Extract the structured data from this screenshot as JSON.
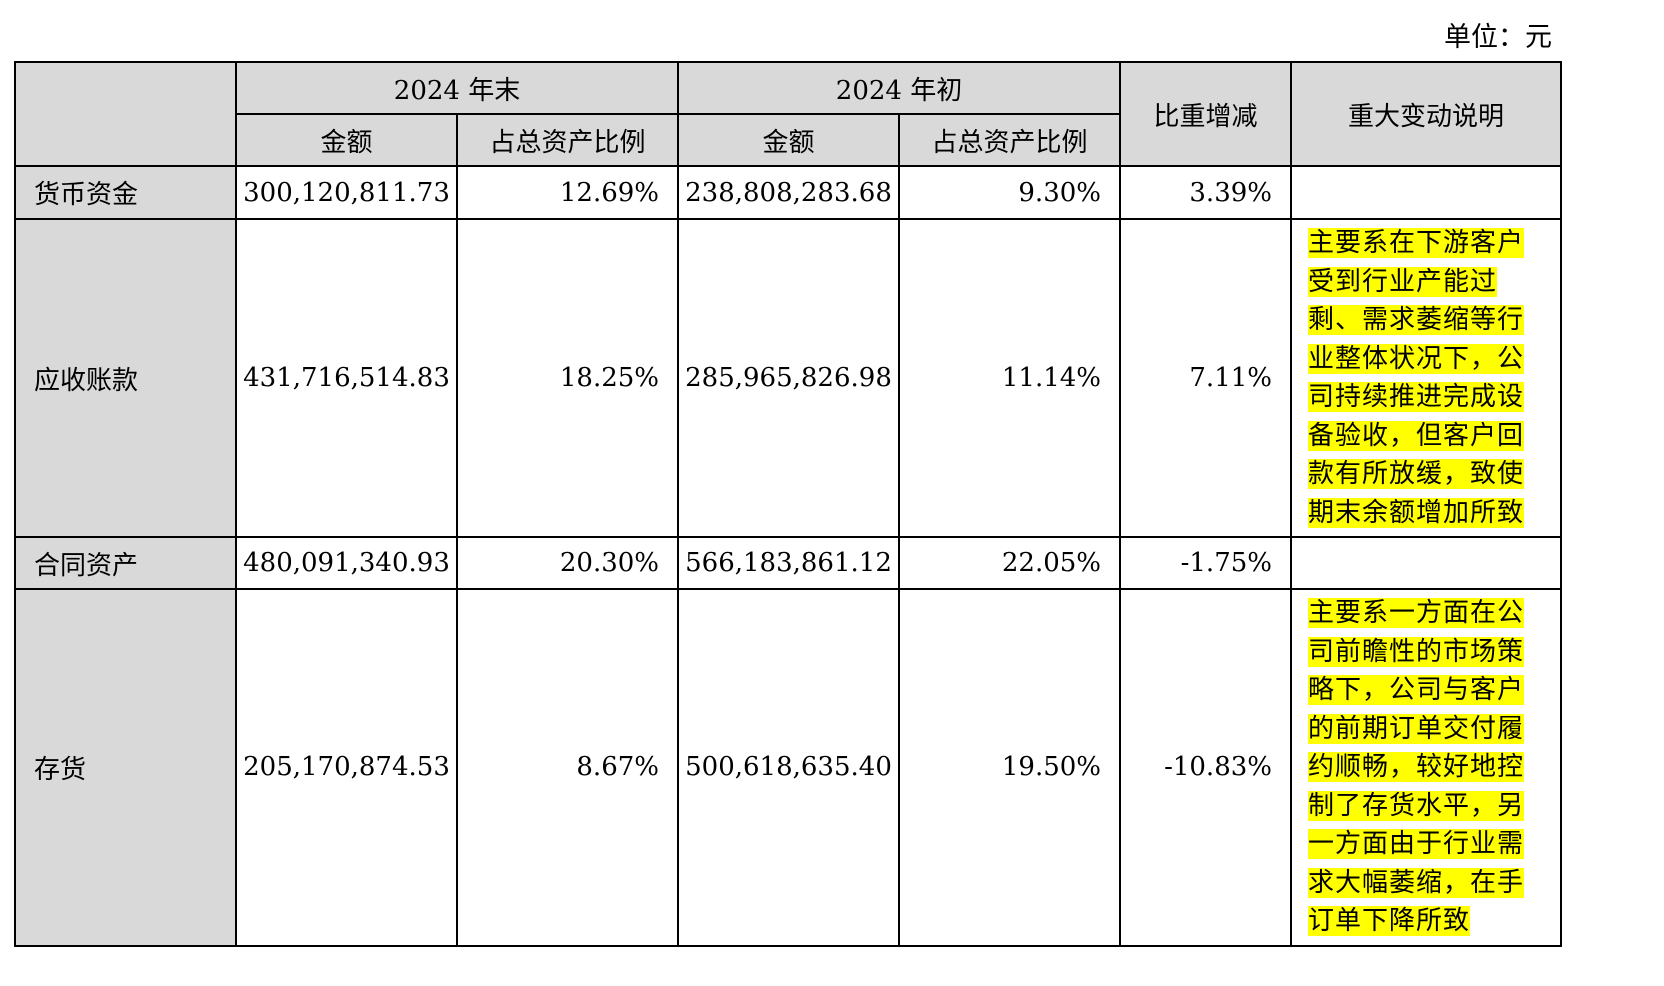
{
  "unit_label": "单位：元",
  "header": {
    "year_end": "2024 年末",
    "year_start": "2024 年初",
    "amount": "金额",
    "ratio": "占总资产比例",
    "change": "比重增减",
    "note": "重大变动说明"
  },
  "rows": [
    {
      "label": "货币资金",
      "end_amount": "300,120,811.73",
      "end_ratio": "12.69%",
      "start_amount": "238,808,283.68",
      "start_ratio": "9.30%",
      "change": "3.39%",
      "note": ""
    },
    {
      "label": "应收账款",
      "end_amount": "431,716,514.83",
      "end_ratio": "18.25%",
      "start_amount": "285,965,826.98",
      "start_ratio": "11.14%",
      "change": "7.11%",
      "note": "主要系在下游客户受到行业产能过剩、需求萎缩等行业整体状况下，公司持续推进完成设备验收，但客户回款有所放缓，致使期末余额增加所致"
    },
    {
      "label": "合同资产",
      "end_amount": "480,091,340.93",
      "end_ratio": "20.30%",
      "start_amount": "566,183,861.12",
      "start_ratio": "22.05%",
      "change": "-1.75%",
      "note": ""
    },
    {
      "label": "存货",
      "end_amount": "205,170,874.53",
      "end_ratio": "8.67%",
      "start_amount": "500,618,635.40",
      "start_ratio": "19.50%",
      "change": "-10.83%",
      "note": "主要系一方面在公司前瞻性的市场策略下，公司与客户的前期订单交付履约顺畅，较好地控制了存货水平，另一方面由于行业需求大幅萎缩，在手订单下降所致"
    }
  ]
}
